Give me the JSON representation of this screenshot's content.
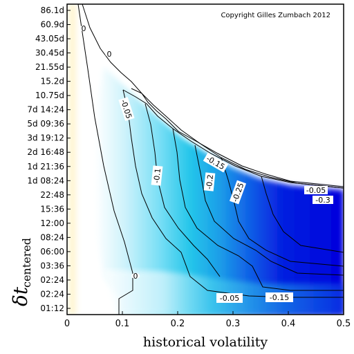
{
  "chart_data": {
    "type": "heatmap",
    "title": "",
    "copyright": "Copyright Gilles Zumbach 2012",
    "xlabel": "historical volatility",
    "ylabel_main": "δt",
    "ylabel_sub": "centered",
    "xlim": [
      0,
      0.5
    ],
    "x_ticks": [
      "0",
      "0.1",
      "0.2",
      "0.3",
      "0.4",
      "0.5"
    ],
    "y_ticks": [
      "01:12",
      "02:24",
      "02:24",
      "03:36",
      "06:00",
      "08:24",
      "12:00",
      "15:36",
      "22:48",
      "1d 08:24",
      "1d 21:36",
      "2d 16:48",
      "3d 19:12",
      "5d 09:36",
      "7d 14:24",
      "10.75d",
      "15.2d",
      "21.55d",
      "30.45d",
      "43.05d",
      "60.9d",
      "86.1d"
    ],
    "contour_levels": [
      "0",
      "0",
      "0",
      "-0.05",
      "-0.1",
      "-0.15",
      "-0.2",
      "-0.25",
      "-0.05",
      "-0.05",
      "-0.15",
      "-0.3"
    ],
    "colors": {
      "positive": "#fff3c4",
      "zero": "#ffffff",
      "mid_negative": "#29c9ec",
      "strong_negative": "#0000dd",
      "contour_line": "#000000"
    }
  }
}
